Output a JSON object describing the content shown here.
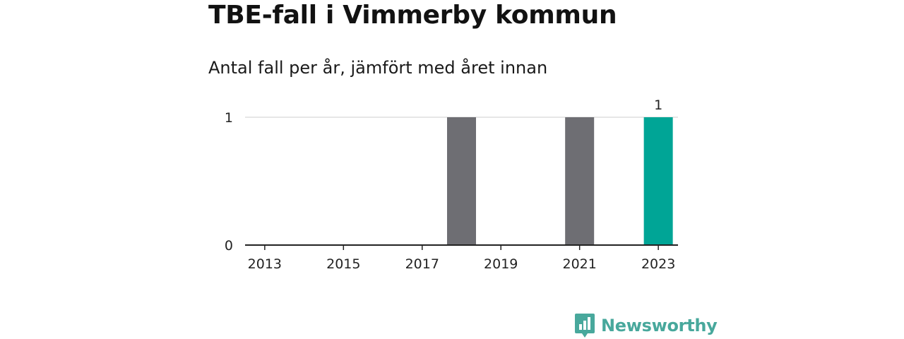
{
  "header": {
    "title": "TBE-fall i Vimmerby kommun",
    "subtitle": "Antal fall per år, jämfört med året innan"
  },
  "brand": {
    "name": "Newsworthy",
    "icon": "newsworthy-logo-icon",
    "color": "#48a89c"
  },
  "colors": {
    "bar_default": "#6e6e73",
    "bar_highlight": "#00a596",
    "grid": "#d6d6d6",
    "axis": "#222222"
  },
  "chart_data": {
    "type": "bar",
    "categories": [
      "2013",
      "2014",
      "2015",
      "2016",
      "2017",
      "2018",
      "2019",
      "2020",
      "2021",
      "2022",
      "2023"
    ],
    "values": [
      0,
      0,
      0,
      0,
      0,
      1,
      0,
      0,
      1,
      0,
      1
    ],
    "highlight_index": 10,
    "data_labels": [
      {
        "index": 10,
        "text": "1"
      }
    ],
    "xticks": [
      "2013",
      "2015",
      "2017",
      "2019",
      "2021",
      "2023"
    ],
    "yticks": [
      "0",
      "1"
    ],
    "ylim": [
      0,
      1
    ],
    "grid": true,
    "title": "TBE-fall i Vimmerby kommun",
    "subtitle": "Antal fall per år, jämfört med året innan",
    "xlabel": "",
    "ylabel": ""
  }
}
